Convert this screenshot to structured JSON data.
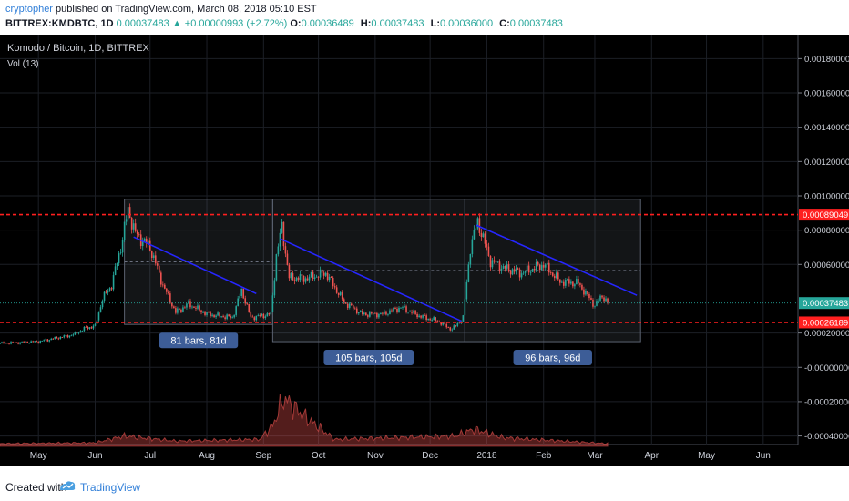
{
  "header": {
    "author": "cryptopher",
    "published_text": "published on TradingView.com, March 08, 2018 05:10 EST",
    "symbol_line": "BITTREX:KMDBTC, 1D",
    "last_price": "0.00037483",
    "change_arrow": "▲",
    "change_text": "+0.00000993 (+2.72%)",
    "ohlc": [
      {
        "label": "O:",
        "value": "0.00036489"
      },
      {
        "label": "H:",
        "value": "0.00037483"
      },
      {
        "label": "L:",
        "value": "0.00036000"
      },
      {
        "label": "C:",
        "value": "0.00037483"
      }
    ]
  },
  "footer": {
    "created_with": "Created with",
    "brand": "TradingView"
  },
  "colors": {
    "background": "#000000",
    "up_candle": "#26a69a",
    "down_candle": "#ef5350",
    "trendline": "#2626ff",
    "resistance": "#ff1f1f",
    "support": "#ff1f1f",
    "last_price_label": "#26a69a",
    "range_box": "#5b6270",
    "measure_label": "#3d5d97"
  },
  "chart_data": {
    "type": "candlestick",
    "title": "Komodo / Bitcoin, 1D, BITTREX",
    "indicator": "Vol (13)",
    "y_axis": {
      "ylim": [
        -0.00045,
        0.00194
      ],
      "tick_labels": [
        "0.00180000",
        "0.00160000",
        "0.00140000",
        "0.00120000",
        "0.00100000",
        "0.00080000",
        "0.00060000",
        "0.00020000",
        "-0.00000000",
        "-0.00020000",
        "-0.00040000"
      ],
      "tick_values": [
        0.0018,
        0.0016,
        0.0014,
        0.0012,
        0.001,
        0.0008,
        0.0006,
        0.0002,
        0.0,
        -0.0002,
        -0.0004
      ]
    },
    "x_axis": {
      "start_date": "2017-04-10",
      "end_date": "2018-06-20",
      "tick_labels": [
        "May",
        "Jun",
        "Jul",
        "Aug",
        "Sep",
        "Oct",
        "Nov",
        "Dec",
        "2018",
        "Feb",
        "Mar",
        "Apr",
        "May",
        "Jun"
      ],
      "tick_dates": [
        "2017-05-01",
        "2017-06-01",
        "2017-07-01",
        "2017-08-01",
        "2017-09-01",
        "2017-10-01",
        "2017-11-01",
        "2017-12-01",
        "2018-01-01",
        "2018-02-01",
        "2018-03-01",
        "2018-04-01",
        "2018-05-01",
        "2018-06-01"
      ]
    },
    "price_path": [
      {
        "date": "2017-04-10",
        "price": 0.00014
      },
      {
        "date": "2017-05-01",
        "price": 0.00015
      },
      {
        "date": "2017-05-20",
        "price": 0.00019
      },
      {
        "date": "2017-05-27",
        "price": 0.00023
      },
      {
        "date": "2017-06-01",
        "price": 0.00024
      },
      {
        "date": "2017-06-05",
        "price": 0.0004
      },
      {
        "date": "2017-06-10",
        "price": 0.00048
      },
      {
        "date": "2017-06-15",
        "price": 0.0007
      },
      {
        "date": "2017-06-19",
        "price": 0.00092
      },
      {
        "date": "2017-06-23",
        "price": 0.00078
      },
      {
        "date": "2017-07-01",
        "price": 0.0007
      },
      {
        "date": "2017-07-08",
        "price": 0.00048
      },
      {
        "date": "2017-07-15",
        "price": 0.00032
      },
      {
        "date": "2017-07-22",
        "price": 0.00037
      },
      {
        "date": "2017-08-01",
        "price": 0.00031
      },
      {
        "date": "2017-08-15",
        "price": 0.00029
      },
      {
        "date": "2017-08-20",
        "price": 0.00045
      },
      {
        "date": "2017-08-25",
        "price": 0.00029
      },
      {
        "date": "2017-09-05",
        "price": 0.00031
      },
      {
        "date": "2017-09-08",
        "price": 0.00065
      },
      {
        "date": "2017-09-11",
        "price": 0.00082
      },
      {
        "date": "2017-09-15",
        "price": 0.00052
      },
      {
        "date": "2017-09-25",
        "price": 0.00052
      },
      {
        "date": "2017-10-05",
        "price": 0.00055
      },
      {
        "date": "2017-10-15",
        "price": 0.00038
      },
      {
        "date": "2017-10-25",
        "price": 0.00031
      },
      {
        "date": "2017-11-05",
        "price": 0.00031
      },
      {
        "date": "2017-11-15",
        "price": 0.00035
      },
      {
        "date": "2017-11-25",
        "price": 0.0003
      },
      {
        "date": "2017-12-05",
        "price": 0.00027
      },
      {
        "date": "2017-12-13",
        "price": 0.00022
      },
      {
        "date": "2017-12-19",
        "price": 0.00029
      },
      {
        "date": "2017-12-23",
        "price": 0.0007
      },
      {
        "date": "2017-12-27",
        "price": 0.00085
      },
      {
        "date": "2018-01-03",
        "price": 0.00062
      },
      {
        "date": "2018-01-10",
        "price": 0.00058
      },
      {
        "date": "2018-01-20",
        "price": 0.00055
      },
      {
        "date": "2018-02-01",
        "price": 0.0006
      },
      {
        "date": "2018-02-10",
        "price": 0.0005
      },
      {
        "date": "2018-02-20",
        "price": 0.00049
      },
      {
        "date": "2018-03-01",
        "price": 0.00036
      },
      {
        "date": "2018-03-05",
        "price": 0.00042
      },
      {
        "date": "2018-03-08",
        "price": 0.000375
      }
    ],
    "volume_path": [
      {
        "date": "2017-04-10",
        "value": 1.5e-05
      },
      {
        "date": "2017-06-01",
        "value": 2e-05
      },
      {
        "date": "2017-06-17",
        "value": 6e-05
      },
      {
        "date": "2017-07-15",
        "value": 3e-05
      },
      {
        "date": "2017-08-30",
        "value": 4e-05
      },
      {
        "date": "2017-09-06",
        "value": 0.00012
      },
      {
        "date": "2017-09-12",
        "value": 0.00028
      },
      {
        "date": "2017-09-25",
        "value": 0.00016
      },
      {
        "date": "2017-10-10",
        "value": 4e-05
      },
      {
        "date": "2017-12-15",
        "value": 6e-05
      },
      {
        "date": "2017-12-25",
        "value": 0.0001
      },
      {
        "date": "2018-01-10",
        "value": 5e-05
      },
      {
        "date": "2018-03-08",
        "value": 1.5e-05
      }
    ],
    "horizontal_lines": [
      {
        "name": "resistance",
        "value": 0.00089049,
        "label": "0.00089049",
        "style": "dashed"
      },
      {
        "name": "support",
        "value": 0.00026189,
        "label": "0.00026189",
        "style": "dashed"
      }
    ],
    "last_price_line": {
      "value": 0.00037483,
      "label": "0.00037483"
    },
    "trendlines": [
      {
        "from": {
          "date": "2017-06-22",
          "price": 0.00076
        },
        "to": {
          "date": "2017-08-28",
          "price": 0.00043
        }
      },
      {
        "from": {
          "date": "2017-09-10",
          "price": 0.00075
        },
        "to": {
          "date": "2017-12-18",
          "price": 0.00027
        }
      },
      {
        "from": {
          "date": "2017-12-26",
          "price": 0.00083
        },
        "to": {
          "date": "2018-03-24",
          "price": 0.00042
        }
      }
    ],
    "date_ranges": [
      {
        "from": "2017-06-17",
        "to": "2017-09-06",
        "price_high": 0.00098,
        "price_low": 0.00025,
        "label": "81 bars, 81d"
      },
      {
        "from": "2017-09-06",
        "to": "2017-12-20",
        "price_high": 0.00098,
        "price_low": 0.00015,
        "label": "105 bars, 105d"
      },
      {
        "from": "2017-12-20",
        "to": "2018-03-26",
        "price_high": 0.00098,
        "price_low": 0.00015,
        "label": "96 bars, 96d"
      }
    ]
  }
}
